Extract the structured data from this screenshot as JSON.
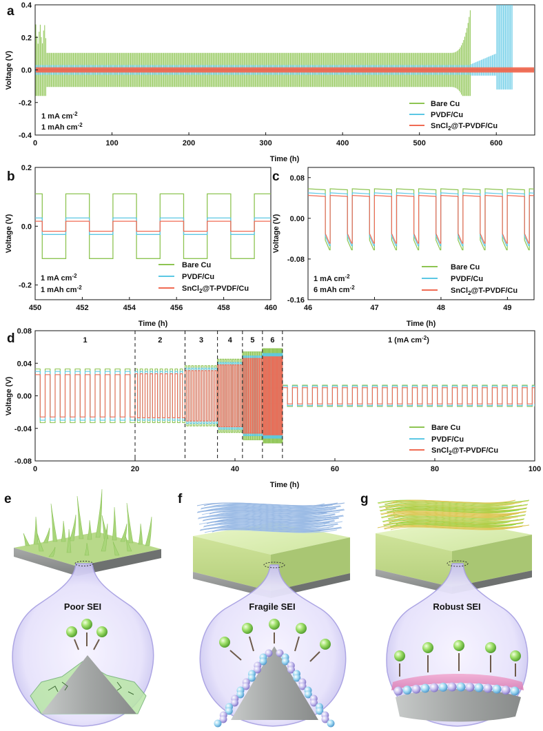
{
  "colors": {
    "bare": "#8dc451",
    "pvdf": "#5bc7e4",
    "sncl": "#f06a52"
  },
  "legend": {
    "bare": "Bare Cu",
    "pvdf": "PVDF/Cu",
    "sncl_main": "SnCl",
    "sncl_sub": "2",
    "sncl_tail": "@T-PVDF/Cu"
  },
  "chart_data": [
    {
      "panel": "a",
      "type": "line",
      "xlabel": "Time (h)",
      "ylabel": "Voltage (V)",
      "xlim": [
        0,
        650
      ],
      "ylim": [
        -0.4,
        0.4
      ],
      "xticks": [
        0,
        100,
        200,
        300,
        400,
        500,
        600
      ],
      "yticks": [
        -0.4,
        -0.2,
        0.0,
        0.2,
        0.4
      ],
      "ytick_labels": [
        "-0.4",
        "-0.2",
        "0.0",
        "0.2",
        "0.4"
      ],
      "annotations": {
        "line1": "1 mA cm",
        "line1_sup": "-2",
        "line2": "1 mAh cm",
        "line2_sup": "-2"
      },
      "series": [
        {
          "name": "Bare Cu",
          "amplitude": 0.105,
          "end_time": 567,
          "failure": "short-circuit spike at ~560 h"
        },
        {
          "name": "PVDF/Cu",
          "amplitude": 0.03,
          "end_time": 622,
          "failure": "spikes 605-620 h"
        },
        {
          "name": "SnCl2@T-PVDF/Cu",
          "amplitude": 0.015,
          "end_time": 650
        }
      ]
    },
    {
      "panel": "b",
      "type": "line",
      "xlabel": "Time (h)",
      "ylabel": "Voltage (V)",
      "xlim": [
        450,
        460
      ],
      "ylim": [
        -0.25,
        0.2
      ],
      "xticks": [
        450,
        452,
        454,
        456,
        458,
        460
      ],
      "yticks": [
        -0.2,
        0.0,
        0.2
      ],
      "ytick_labels": [
        "-0.2",
        "0.0",
        "0.2"
      ],
      "annotations": {
        "line1": "1 mA cm",
        "line1_sup": "-2",
        "line2": "1 mAh cm",
        "line2_sup": "-2"
      },
      "period_h": 2,
      "series": [
        {
          "name": "Bare Cu",
          "plateau": 0.11
        },
        {
          "name": "PVDF/Cu",
          "plateau": 0.028
        },
        {
          "name": "SnCl2@T-PVDF/Cu",
          "plateau": 0.017
        }
      ]
    },
    {
      "panel": "c",
      "type": "line",
      "xlabel": "Time (h)",
      "ylabel": "Voltage (V)",
      "xlim": [
        46,
        49.4
      ],
      "ylim": [
        -0.16,
        0.1
      ],
      "xticks": [
        46,
        47,
        48,
        49
      ],
      "yticks": [
        -0.16,
        -0.08,
        0.0,
        0.08
      ],
      "ytick_labels": [
        "-0.16",
        "-0.08",
        "0.00",
        "0.08"
      ],
      "annotations": {
        "line1": "1 mA cm",
        "line1_sup": "-2",
        "line2": "6 mAh cm",
        "line2_sup": "-2"
      },
      "series": [
        {
          "name": "Bare Cu",
          "plateau": 0.058
        },
        {
          "name": "PVDF/Cu",
          "plateau": 0.05
        },
        {
          "name": "SnCl2@T-PVDF/Cu",
          "plateau": 0.045
        }
      ]
    },
    {
      "panel": "d",
      "type": "line",
      "xlabel": "Time (h)",
      "ylabel": "Voltage (V)",
      "xlim": [
        0,
        100
      ],
      "ylim": [
        -0.08,
        0.08
      ],
      "xticks": [
        0,
        20,
        40,
        60,
        80,
        100
      ],
      "yticks": [
        -0.08,
        -0.04,
        0.0,
        0.04,
        0.08
      ],
      "ytick_labels": [
        "-0.08",
        "-0.04",
        "0.00",
        "0.04",
        "0.08"
      ],
      "segment_labels": [
        "1",
        "2",
        "3",
        "4",
        "5",
        "6",
        "1 (mA cm"
      ],
      "segment_label_suffix": "-2",
      "segment_label_close": ")",
      "segment_bounds": [
        0,
        20,
        30,
        36.5,
        41.5,
        45.5,
        49.5,
        100
      ],
      "current_densities_mA_cm2": [
        1,
        2,
        3,
        4,
        5,
        6,
        1
      ],
      "series": [
        {
          "name": "Bare Cu",
          "plateaus": [
            0.033,
            0.033,
            0.037,
            0.045,
            0.054,
            0.058,
            0.013
          ]
        },
        {
          "name": "PVDF/Cu",
          "plateaus": [
            0.03,
            0.03,
            0.034,
            0.041,
            0.049,
            0.052,
            0.012
          ]
        },
        {
          "name": "SnCl2@T-PVDF/Cu",
          "plateaus": [
            0.026,
            0.027,
            0.031,
            0.038,
            0.046,
            0.048,
            0.01
          ]
        }
      ]
    }
  ],
  "illustrations": {
    "e": {
      "label": "e",
      "caption": "Poor SEI"
    },
    "f": {
      "label": "f",
      "caption": "Fragile SEI"
    },
    "g": {
      "label": "g",
      "caption": "Robust SEI"
    }
  }
}
